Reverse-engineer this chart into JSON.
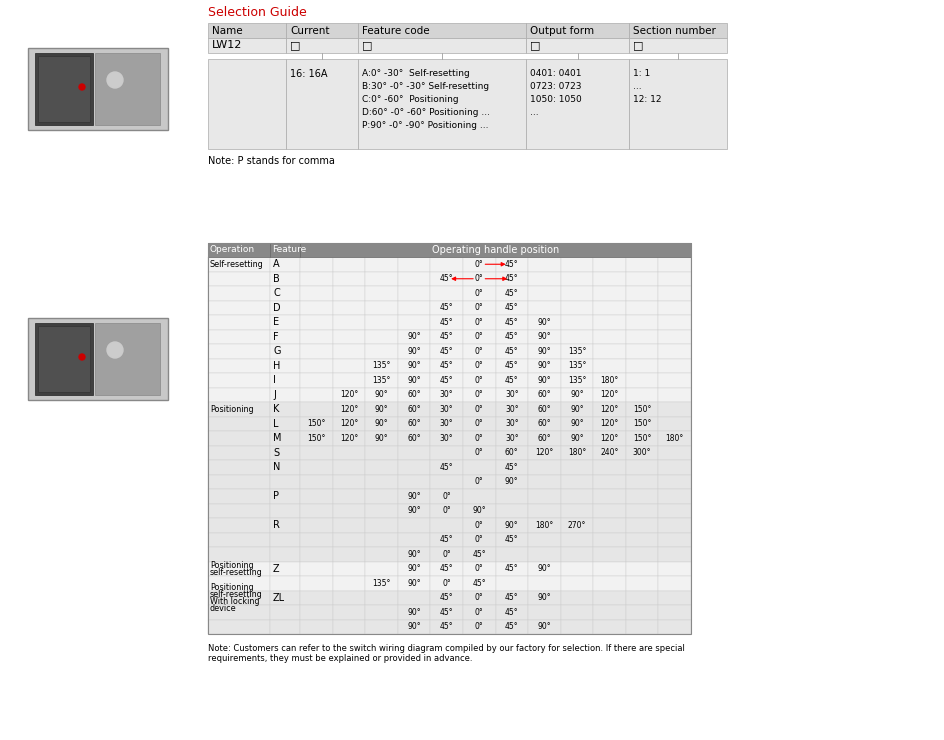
{
  "title": "Selection Guide",
  "title_color": "#cc0000",
  "bg_color": "#ffffff",
  "table1": {
    "headers": [
      "Name",
      "Current",
      "Feature code",
      "Output form",
      "Section number"
    ],
    "header_bg": "#d4d4d4",
    "row1": [
      "LW12",
      "□",
      "□",
      "□",
      "□"
    ],
    "feat_lines": [
      "A:0° -30°  Self-resetting",
      "B:30° -0° -30° Self-resetting",
      "C:0° -60°  Positioning",
      "D:60° -0° -60° Positioning ...",
      "P:90° -0° -90° Positioning ..."
    ],
    "out_lines": [
      "0401: 0401",
      "0723: 0723",
      "1050: 1050",
      "..."
    ],
    "sec_lines": [
      "1: 1",
      "...",
      "12: 12"
    ],
    "current_text": "16: 16A",
    "cell_bg": "#e8e8e8"
  },
  "note1": "Note: P stands for comma",
  "table2": {
    "header_bg": "#888888",
    "header_text_color": "#ffffff",
    "rows": [
      {
        "op": "Self-resetting",
        "feat": "A",
        "raw": [
          null,
          null,
          null,
          null,
          null,
          "0°",
          "45°",
          null,
          null,
          null,
          null,
          null
        ],
        "arrow": "right"
      },
      {
        "op": "",
        "feat": "B",
        "raw": [
          null,
          null,
          null,
          null,
          "45°",
          "0°",
          "45°",
          null,
          null,
          null,
          null,
          null
        ],
        "arrow": "both"
      },
      {
        "op": "",
        "feat": "C",
        "raw": [
          null,
          null,
          null,
          null,
          null,
          "0°",
          "45°",
          null,
          null,
          null,
          null,
          null
        ],
        "arrow": null
      },
      {
        "op": "",
        "feat": "D",
        "raw": [
          null,
          null,
          null,
          null,
          "45°",
          "0°",
          "45°",
          null,
          null,
          null,
          null,
          null
        ],
        "arrow": null
      },
      {
        "op": "",
        "feat": "E",
        "raw": [
          null,
          null,
          null,
          null,
          "45°",
          "0°",
          "45°",
          "90°",
          null,
          null,
          null,
          null
        ],
        "arrow": null
      },
      {
        "op": "",
        "feat": "F",
        "raw": [
          null,
          null,
          null,
          "90°",
          "45°",
          "0°",
          "45°",
          "90°",
          null,
          null,
          null,
          null
        ],
        "arrow": null
      },
      {
        "op": "",
        "feat": "G",
        "raw": [
          null,
          null,
          null,
          "90°",
          "45°",
          "0°",
          "45°",
          "90°",
          "135°",
          null,
          null,
          null
        ],
        "arrow": null
      },
      {
        "op": "",
        "feat": "H",
        "raw": [
          null,
          null,
          "135°",
          "90°",
          "45°",
          "0°",
          "45°",
          "90°",
          "135°",
          null,
          null,
          null
        ],
        "arrow": null
      },
      {
        "op": "",
        "feat": "I",
        "raw": [
          null,
          null,
          "135°",
          "90°",
          "45°",
          "0°",
          "45°",
          "90°",
          "135°",
          "180°",
          null,
          null
        ],
        "arrow": null
      },
      {
        "op": "",
        "feat": "J",
        "raw": [
          null,
          "120°",
          "90°",
          "60°",
          "30°",
          "0°",
          "30°",
          "60°",
          "90°",
          "120°",
          null,
          null
        ],
        "arrow": null
      },
      {
        "op": "Positioning",
        "feat": "K",
        "raw": [
          null,
          "120°",
          "90°",
          "60°",
          "30°",
          "0°",
          "30°",
          "60°",
          "90°",
          "120°",
          "150°",
          null
        ],
        "arrow": null
      },
      {
        "op": "",
        "feat": "L",
        "raw": [
          "150°",
          "120°",
          "90°",
          "60°",
          "30°",
          "0°",
          "30°",
          "60°",
          "90°",
          "120°",
          "150°",
          null
        ],
        "arrow": null
      },
      {
        "op": "",
        "feat": "M",
        "raw": [
          "150°",
          "120°",
          "90°",
          "60°",
          "30°",
          "0°",
          "30°",
          "60°",
          "90°",
          "120°",
          "150°",
          "180°"
        ],
        "arrow": null
      },
      {
        "op": "",
        "feat": "S",
        "raw": [
          null,
          null,
          null,
          null,
          null,
          "0°",
          "60°",
          "120°",
          "180°",
          "240°",
          "300°",
          null
        ],
        "arrow": null
      },
      {
        "op": "",
        "feat": "N",
        "raw": [
          null,
          null,
          null,
          null,
          "45°",
          null,
          "45°",
          null,
          null,
          null,
          null,
          null
        ],
        "arrow": null
      },
      {
        "op": "",
        "feat": "",
        "raw": [
          null,
          null,
          null,
          null,
          null,
          "0°",
          "90°",
          null,
          null,
          null,
          null,
          null
        ],
        "arrow": null
      },
      {
        "op": "",
        "feat": "P",
        "raw": [
          null,
          null,
          null,
          "90°",
          "0°",
          null,
          null,
          null,
          null,
          null,
          null,
          null
        ],
        "arrow": null
      },
      {
        "op": "",
        "feat": "",
        "raw": [
          null,
          null,
          null,
          "90°",
          "0°",
          "90°",
          null,
          null,
          null,
          null,
          null,
          null
        ],
        "arrow": null
      },
      {
        "op": "",
        "feat": "R",
        "raw": [
          null,
          null,
          null,
          null,
          null,
          "0°",
          "90°",
          "180°",
          "270°",
          null,
          null,
          null
        ],
        "arrow": null
      },
      {
        "op": "",
        "feat": "",
        "raw": [
          null,
          null,
          null,
          null,
          "45°",
          "0°",
          "45°",
          null,
          null,
          null,
          null,
          null
        ],
        "arrow": null
      },
      {
        "op": "",
        "feat": "",
        "raw": [
          null,
          null,
          null,
          "90°",
          "0°",
          "45°",
          null,
          null,
          null,
          null,
          null,
          null
        ],
        "arrow": null
      },
      {
        "op": "Positioning\nself-resetting",
        "feat": "Z",
        "raw": [
          null,
          null,
          null,
          "90°",
          "45°",
          "0°",
          "45°",
          "90°",
          null,
          null,
          null,
          null
        ],
        "arrow": null
      },
      {
        "op": "",
        "feat": "",
        "raw": [
          null,
          null,
          "135°",
          "90°",
          "0°",
          "45°",
          null,
          null,
          null,
          null,
          null,
          null
        ],
        "arrow": null
      },
      {
        "op": "Positioning\nself-resetting\nWith locking\ndevice",
        "feat": "ZL",
        "raw": [
          null,
          null,
          null,
          null,
          "45°",
          "0°",
          "45°",
          "90°",
          null,
          null,
          null,
          null
        ],
        "arrow": null
      },
      {
        "op": "",
        "feat": "",
        "raw": [
          null,
          null,
          null,
          "90°",
          "45°",
          "0°",
          "45°",
          null,
          null,
          null,
          null,
          null
        ],
        "arrow": null
      },
      {
        "op": "",
        "feat": "",
        "raw": [
          null,
          null,
          null,
          "90°",
          "45°",
          "0°",
          "45°",
          "90°",
          null,
          null,
          null,
          null
        ],
        "arrow": null
      }
    ]
  },
  "note2": "Note: Customers can refer to the switch wiring diagram compiled by our factory for selection. If there are special\nrequirements, they must be explained or provided in advance."
}
